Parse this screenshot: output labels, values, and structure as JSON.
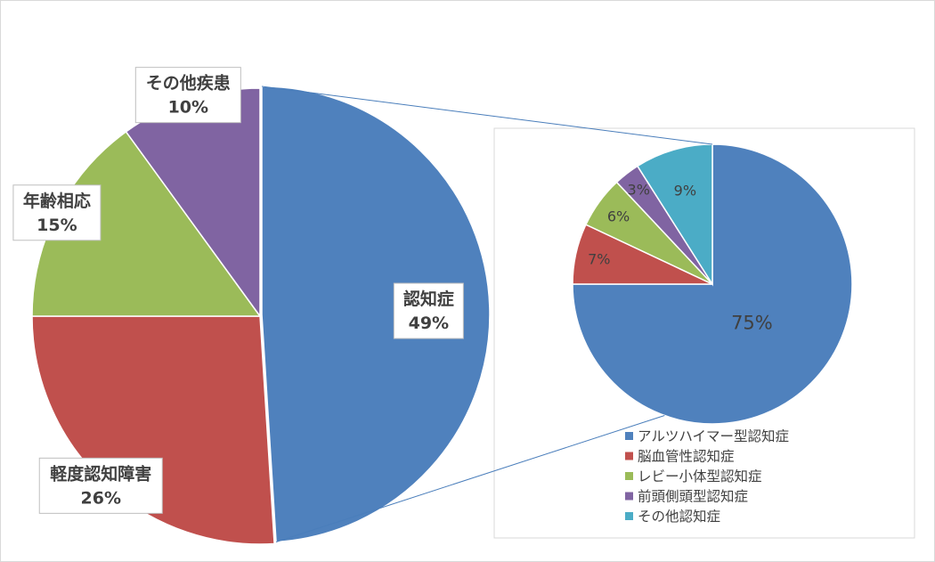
{
  "chart_data": [
    {
      "type": "pie",
      "title": "",
      "categories": [
        "認知症",
        "軽度認知障害",
        "年齢相応",
        "その他疾患"
      ],
      "values": [
        49,
        26,
        15,
        10
      ],
      "labels": [
        "認知症\n49%",
        "軽度認知障害\n26%",
        "年齢相応\n15%",
        "その他疾患\n10%"
      ],
      "colors": [
        "#4f81bd",
        "#c0504d",
        "#9bbb59",
        "#8064a2"
      ],
      "start_angle_deg": 0,
      "direction": "clockwise",
      "exploded_category": "認知症"
    },
    {
      "type": "pie",
      "title": "",
      "breakdown_of": "認知症",
      "categories": [
        "アルツハイマー型認知症",
        "脳血管性認知症",
        "レビー小体型認知症",
        "前頭側頭型認知症",
        "その他認知症"
      ],
      "values": [
        75,
        7,
        6,
        3,
        9
      ],
      "labels": [
        "75%",
        "7%",
        "6%",
        "3%",
        "9%"
      ],
      "colors": [
        "#4f81bd",
        "#c0504d",
        "#9bbb59",
        "#8064a2",
        "#4bacc6"
      ],
      "start_angle_deg": 0,
      "direction": "clockwise",
      "legend": {
        "position": "bottom-left",
        "entries": [
          "アルツハイマー型認知症",
          "脳血管性認知症",
          "レビー小体型認知症",
          "前頭側頭型認知症",
          "その他認知症"
        ]
      }
    }
  ]
}
